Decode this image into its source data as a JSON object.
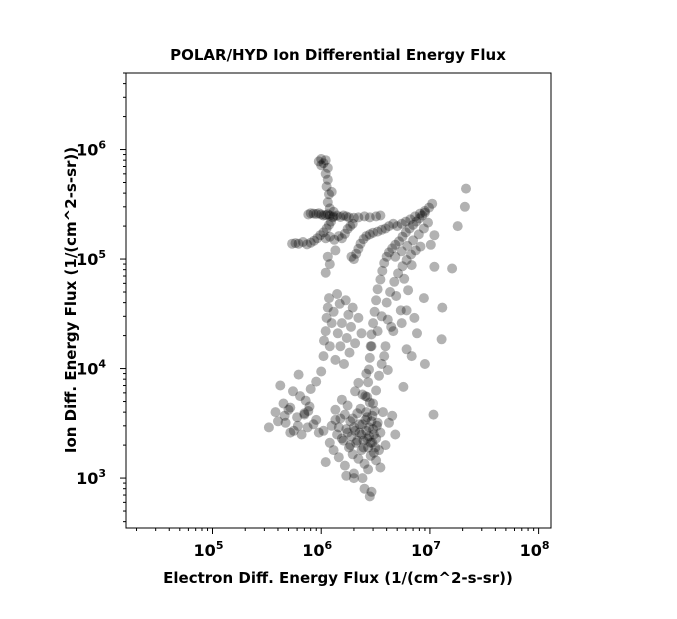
{
  "chart_data": {
    "type": "scatter",
    "title": "POLAR/HYD  Ion Differential Energy Flux",
    "xlabel": "Electron Diff. Energy Flux (1/(cm^2-s-sr))",
    "ylabel": "Ion Diff. Energy Flux (1/(cm^2-s-sr))",
    "xscale": "log",
    "yscale": "log",
    "xlim": [
      16000,
      130000000
    ],
    "ylim": [
      350,
      5000000
    ],
    "grid": false,
    "marker_color": "#000000",
    "marker_alpha": 0.3,
    "xticks": [
      {
        "base": "10",
        "exp": "5",
        "value": 100000
      },
      {
        "base": "10",
        "exp": "6",
        "value": 1000000
      },
      {
        "base": "10",
        "exp": "7",
        "value": 10000000
      },
      {
        "base": "10",
        "exp": "8",
        "value": 100000000
      }
    ],
    "yticks": [
      {
        "base": "10",
        "exp": "3",
        "value": 1000
      },
      {
        "base": "10",
        "exp": "4",
        "value": 10000
      },
      {
        "base": "10",
        "exp": "5",
        "value": 100000
      },
      {
        "base": "10",
        "exp": "6",
        "value": 1000000
      }
    ],
    "points": [
      [
        330000,
        2900
      ],
      [
        380000,
        4000
      ],
      [
        400000,
        3300
      ],
      [
        450000,
        4800
      ],
      [
        420000,
        7000
      ],
      [
        470000,
        3200
      ],
      [
        500000,
        4200
      ],
      [
        520000,
        2600
      ],
      [
        550000,
        6200
      ],
      [
        600000,
        3600
      ],
      [
        620000,
        8800
      ],
      [
        660000,
        2500
      ],
      [
        700000,
        3800
      ],
      [
        720000,
        5100
      ],
      [
        760000,
        4100
      ],
      [
        800000,
        6500
      ],
      [
        850000,
        3100
      ],
      [
        900000,
        7600
      ],
      [
        950000,
        2600
      ],
      [
        1000000,
        9400
      ],
      [
        1050000,
        13000.0
      ],
      [
        1060000,
        18000.0
      ],
      [
        1100000,
        22000.0
      ],
      [
        1120000,
        29000.0
      ],
      [
        1150000,
        36000.0
      ],
      [
        1180000,
        44000.0
      ],
      [
        1200000,
        16000.0
      ],
      [
        1250000,
        26000.0
      ],
      [
        1300000,
        33000.0
      ],
      [
        1350000,
        12000.0
      ],
      [
        1400000,
        48000.0
      ],
      [
        1420000,
        21000.0
      ],
      [
        1480000,
        39000.0
      ],
      [
        1500000,
        16000.0
      ],
      [
        1550000,
        26000.0
      ],
      [
        1620000,
        11000.0
      ],
      [
        1680000,
        42000.0
      ],
      [
        1720000,
        19000.0
      ],
      [
        1780000,
        31000.0
      ],
      [
        1820000,
        14000.0
      ],
      [
        1880000,
        24000.0
      ],
      [
        1950000,
        36000.0
      ],
      [
        2050000,
        17000.0
      ],
      [
        2200000,
        29000.0
      ],
      [
        2350000,
        21000.0
      ],
      [
        1100000,
        1400
      ],
      [
        1200000,
        2100
      ],
      [
        1250000,
        3000
      ],
      [
        1300000,
        1800
      ],
      [
        1350000,
        4200
      ],
      [
        1400000,
        2500
      ],
      [
        1450000,
        1550
      ],
      [
        1500000,
        3500
      ],
      [
        1550000,
        5200
      ],
      [
        1600000,
        2200
      ],
      [
        1650000,
        1300
      ],
      [
        1700000,
        2800
      ],
      [
        1750000,
        4600
      ],
      [
        1800000,
        1900
      ],
      [
        1850000,
        3300
      ],
      [
        1900000,
        2400
      ],
      [
        1950000,
        1650
      ],
      [
        2000000,
        2900
      ],
      [
        2050000,
        6200
      ],
      [
        2100000,
        2100
      ],
      [
        2150000,
        3900
      ],
      [
        2200000,
        1500
      ],
      [
        2250000,
        2600
      ],
      [
        2300000,
        4300
      ],
      [
        2350000,
        1800
      ],
      [
        2400000,
        3100
      ],
      [
        2450000,
        2200
      ],
      [
        2500000,
        1350
      ],
      [
        2550000,
        5600
      ],
      [
        2600000,
        2700
      ],
      [
        2650000,
        3600
      ],
      [
        2700000,
        1900
      ],
      [
        2750000,
        2400
      ],
      [
        2800000,
        4900
      ],
      [
        2850000,
        1600
      ],
      [
        2900000,
        3300
      ],
      [
        2950000,
        2100
      ],
      [
        3000000,
        2800
      ],
      [
        3050000,
        1700
      ],
      [
        3100000,
        4100
      ],
      [
        3200000,
        2300
      ],
      [
        3300000,
        3200
      ],
      [
        3400000,
        1800
      ],
      [
        3500000,
        2600
      ],
      [
        3700000,
        4000
      ],
      [
        3900000,
        2000
      ],
      [
        1350000,
        3400
      ],
      [
        1450000,
        2900
      ],
      [
        1550000,
        2300
      ],
      [
        1650000,
        3800
      ],
      [
        1750000,
        2600
      ],
      [
        1850000,
        2000
      ],
      [
        1950000,
        3500
      ],
      [
        2050000,
        2700
      ],
      [
        2150000,
        2200
      ],
      [
        2250000,
        3100
      ],
      [
        2350000,
        2500
      ],
      [
        2450000,
        1900
      ],
      [
        2550000,
        3400
      ],
      [
        2650000,
        2300
      ],
      [
        2750000,
        2900
      ],
      [
        2850000,
        2100
      ],
      [
        2950000,
        3700
      ],
      [
        3050000,
        2500
      ],
      [
        3150000,
        1900
      ],
      [
        3250000,
        3000
      ],
      [
        2000000,
        1100
      ],
      [
        2400000,
        1000
      ],
      [
        2700000,
        1200
      ],
      [
        2500000,
        800
      ],
      [
        2900000,
        750
      ],
      [
        2800000,
        680
      ],
      [
        3200000,
        1450
      ],
      [
        2000000,
        1000
      ],
      [
        3500000,
        1250
      ],
      [
        1700000,
        1050
      ],
      [
        2600000,
        4000
      ],
      [
        2650000,
        5500
      ],
      [
        2700000,
        7500
      ],
      [
        2750000,
        9800
      ],
      [
        2800000,
        12500.0
      ],
      [
        2850000,
        16000.0
      ],
      [
        2900000,
        20500.0
      ],
      [
        3000000,
        26000.0
      ],
      [
        3100000,
        33000.0
      ],
      [
        3200000,
        42000.0
      ],
      [
        3300000,
        53000.0
      ],
      [
        3500000,
        65000.0
      ],
      [
        3650000,
        78000.0
      ],
      [
        3800000,
        92000.0
      ],
      [
        4000000,
        105000.0
      ],
      [
        4200000,
        115000.0
      ],
      [
        4500000,
        125000.0
      ],
      [
        4800000,
        135000.0
      ],
      [
        5200000,
        145000.0
      ],
      [
        5600000,
        160000.0
      ],
      [
        6000000,
        175000.0
      ],
      [
        6500000,
        190000.0
      ],
      [
        7000000,
        205000.0
      ],
      [
        7500000,
        220000.0
      ],
      [
        8000000,
        235000.0
      ],
      [
        8500000,
        250000.0
      ],
      [
        9000000,
        265000.0
      ],
      [
        2900000,
        16000.0
      ],
      [
        3300000,
        22000.0
      ],
      [
        3600000,
        30000.0
      ],
      [
        4000000,
        40000.0
      ],
      [
        4300000,
        50000.0
      ],
      [
        4700000,
        62000.0
      ],
      [
        5100000,
        74000.0
      ],
      [
        5600000,
        86000.0
      ],
      [
        6100000,
        98000.0
      ],
      [
        6700000,
        110000.0
      ],
      [
        7400000,
        120000.0
      ],
      [
        8200000,
        130000.0
      ],
      [
        4100000,
        28000.0
      ],
      [
        4900000,
        46000.0
      ],
      [
        5800000,
        66000.0
      ],
      [
        6800000,
        88000.0
      ],
      [
        3800000,
        13000.0
      ],
      [
        4600000,
        22000.0
      ],
      [
        5400000,
        34000.0
      ],
      [
        6300000,
        52000.0
      ],
      [
        3200000,
        6300
      ],
      [
        3400000,
        8600
      ],
      [
        3600000,
        11000.0
      ],
      [
        2600000,
        9000
      ],
      [
        2200000,
        7400
      ],
      [
        3900000,
        16000.0
      ],
      [
        4400000,
        24000.0
      ],
      [
        2400000,
        5800
      ],
      [
        3000000,
        4800
      ],
      [
        4100000,
        9700
      ],
      [
        5500000,
        26000.0
      ],
      [
        6100000,
        34000.0
      ],
      [
        4200000,
        3200
      ],
      [
        4800000,
        2500
      ],
      [
        4500000,
        3700
      ],
      [
        6100000,
        15000.0
      ],
      [
        7200000,
        29000.0
      ],
      [
        8800000,
        44000.0
      ],
      [
        11000000,
        85000.0
      ],
      [
        13000000,
        36000.0
      ],
      [
        12800000,
        18500.0
      ],
      [
        9000000,
        11000.0
      ],
      [
        10800000,
        3800
      ],
      [
        18000000,
        200000.0
      ],
      [
        21000000,
        300000.0
      ],
      [
        21500000,
        440000.0
      ],
      [
        16000000,
        82000.0
      ],
      [
        5700000,
        6800
      ],
      [
        6800000,
        13000.0
      ],
      [
        7600000,
        21000.0
      ],
      [
        540000,
        138000.0
      ],
      [
        580000,
        140000.0
      ],
      [
        620000,
        138000.0
      ],
      [
        680000,
        143000.0
      ],
      [
        740000,
        136000.0
      ],
      [
        800000,
        141000.0
      ],
      [
        860000,
        147000.0
      ],
      [
        920000,
        155000.0
      ],
      [
        980000,
        165000.0
      ],
      [
        1050000,
        175000.0
      ],
      [
        1120000,
        190000.0
      ],
      [
        1180000,
        205000.0
      ],
      [
        1230000,
        220000.0
      ],
      [
        1280000,
        240000.0
      ],
      [
        850000,
        260000.0
      ],
      [
        900000,
        258000.0
      ],
      [
        950000,
        262000.0
      ],
      [
        1000000,
        255000.0
      ],
      [
        1050000,
        250000.0
      ],
      [
        1100000,
        252000.0
      ],
      [
        1150000,
        256000.0
      ],
      [
        800000,
        262000.0
      ],
      [
        760000,
        255000.0
      ],
      [
        1200000,
        250000.0
      ],
      [
        1300000,
        245000.0
      ],
      [
        1400000,
        250000.0
      ],
      [
        1500000,
        242000.0
      ],
      [
        1600000,
        250000.0
      ],
      [
        1700000,
        245000.0
      ],
      [
        1800000,
        240000.0
      ],
      [
        2000000,
        238000.0
      ],
      [
        2200000,
        240000.0
      ],
      [
        2500000,
        245000.0
      ],
      [
        2800000,
        240000.0
      ],
      [
        3200000,
        245000.0
      ],
      [
        3500000,
        250000.0
      ],
      [
        1100000,
        155000.0
      ],
      [
        1200000,
        160000.0
      ],
      [
        1320000,
        150000.0
      ],
      [
        1450000,
        162000.0
      ],
      [
        1550000,
        155000.0
      ],
      [
        1650000,
        170000.0
      ],
      [
        1750000,
        188000.0
      ],
      [
        1850000,
        200000.0
      ],
      [
        1950000,
        210000.0
      ],
      [
        1900000,
        105000.0
      ],
      [
        2000000,
        100000.0
      ],
      [
        2100000,
        112000.0
      ],
      [
        2200000,
        124000.0
      ],
      [
        2300000,
        138000.0
      ],
      [
        2450000,
        152000.0
      ],
      [
        2600000,
        162000.0
      ],
      [
        2800000,
        168000.0
      ],
      [
        3000000,
        174000.0
      ],
      [
        3300000,
        178000.0
      ],
      [
        3600000,
        185000.0
      ],
      [
        3900000,
        190000.0
      ],
      [
        4200000,
        200000.0
      ],
      [
        4600000,
        210000.0
      ],
      [
        5000000,
        200000.0
      ],
      [
        5500000,
        210000.0
      ],
      [
        6000000,
        220000.0
      ],
      [
        6600000,
        230000.0
      ],
      [
        7300000,
        245000.0
      ],
      [
        8100000,
        260000.0
      ],
      [
        9000000,
        275000.0
      ],
      [
        9800000,
        295000.0
      ],
      [
        10500000,
        320000.0
      ],
      [
        4800000,
        105000.0
      ],
      [
        5500000,
        118000.0
      ],
      [
        6200000,
        132000.0
      ],
      [
        7000000,
        148000.0
      ],
      [
        7900000,
        168000.0
      ],
      [
        8800000,
        190000.0
      ],
      [
        9600000,
        215000.0
      ],
      [
        11000000,
        165000.0
      ],
      [
        10200000,
        135000.0
      ],
      [
        950000,
        780000.0
      ],
      [
        1000000,
        820000.0
      ],
      [
        1050000,
        750000.0
      ],
      [
        1100000,
        800000.0
      ],
      [
        1150000,
        680000.0
      ],
      [
        1100000,
        600000.0
      ],
      [
        1150000,
        530000.0
      ],
      [
        1120000,
        460000.0
      ],
      [
        1180000,
        390000.0
      ],
      [
        1150000,
        330000.0
      ],
      [
        1200000,
        290000.0
      ],
      [
        1250000,
        410000.0
      ],
      [
        1000000,
        720000.0
      ],
      [
        1300000,
        270000.0
      ],
      [
        1150000,
        105000.0
      ],
      [
        1200000,
        90000.0
      ],
      [
        1100000,
        75000.0
      ],
      [
        1350000,
        120000.0
      ],
      [
        560000,
        2700
      ],
      [
        700000,
        3900
      ],
      [
        640000,
        5600
      ],
      [
        780000,
        4500
      ],
      [
        900000,
        3400
      ],
      [
        520000,
        4400
      ],
      [
        1050000,
        2700
      ],
      [
        460000,
        3700
      ],
      [
        610000,
        3000
      ],
      [
        750000,
        2900
      ]
    ]
  }
}
